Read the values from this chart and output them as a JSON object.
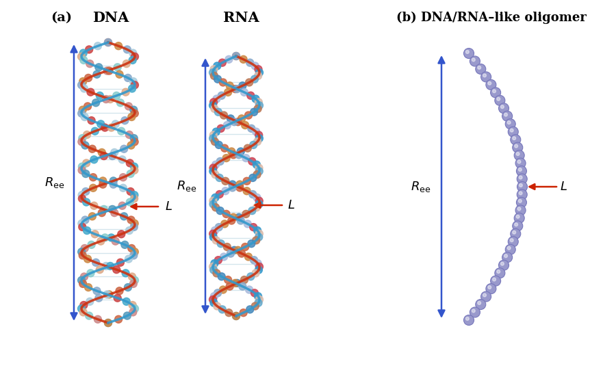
{
  "title_a": "(a)",
  "title_b": "(b) DNA/RNA–like oligomer",
  "label_dna": "DNA",
  "label_rna": "RNA",
  "bg_color": "#ffffff",
  "arrow_blue": "#3355cc",
  "arrow_red": "#cc2200",
  "bead_color": "#9999cc",
  "bead_edge_color": "#7777bb",
  "bead_link_color": "#ccaaaa",
  "num_beads": 35,
  "fig_width": 9.0,
  "fig_height": 5.38
}
